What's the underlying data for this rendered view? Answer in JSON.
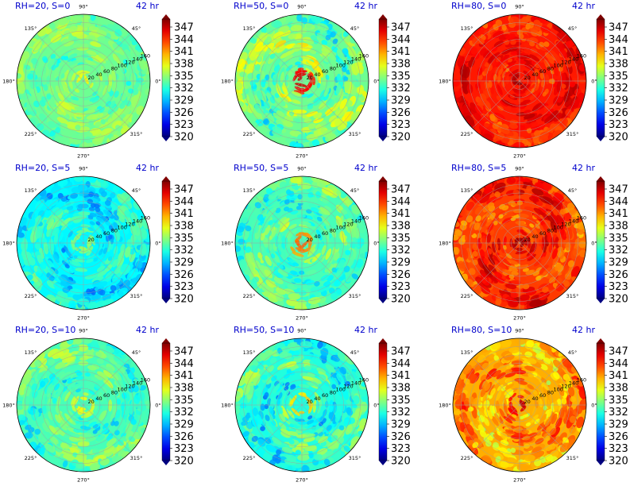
{
  "figure": {
    "colormap": "jet",
    "time_label": "42 hr",
    "title_color": "#0000cc",
    "colorbar_ticks": [
      "347",
      "344",
      "341",
      "338",
      "335",
      "332",
      "329",
      "326",
      "323",
      "320"
    ],
    "angle_labels": {
      "a0": "0°",
      "a45": "45°",
      "a90": "90°",
      "a135": "135°",
      "a180": "180°",
      "a225": "225°",
      "a270": "270°",
      "a315": "315°"
    },
    "radial_labels": [
      "20",
      "40",
      "60",
      "80",
      "100",
      "120",
      "140",
      "160"
    ]
  },
  "chart_data": [
    {
      "type": "heatmap",
      "projection": "polar",
      "title": "RH=20, S=0",
      "time": "42 hr",
      "vmin": 320,
      "vmax": 347,
      "dominant_range": [
        330,
        336
      ],
      "core_value": 338,
      "r_max": 160
    },
    {
      "type": "heatmap",
      "projection": "polar",
      "title": "RH=50, S=0",
      "time": "42 hr",
      "vmin": 320,
      "vmax": 347,
      "dominant_range": [
        328,
        338
      ],
      "core_value": 346,
      "r_max": 160
    },
    {
      "type": "heatmap",
      "projection": "polar",
      "title": "RH=80, S=0",
      "time": "42 hr",
      "vmin": 320,
      "vmax": 347,
      "dominant_range": [
        340,
        346
      ],
      "core_value": 347,
      "r_max": 160
    },
    {
      "type": "heatmap",
      "projection": "polar",
      "title": "RH=20, S=5",
      "time": "42 hr",
      "vmin": 320,
      "vmax": 347,
      "dominant_range": [
        326,
        334
      ],
      "core_value": 336,
      "r_max": 160
    },
    {
      "type": "heatmap",
      "projection": "polar",
      "title": "RH=50, S=5",
      "time": "42 hr",
      "vmin": 320,
      "vmax": 347,
      "dominant_range": [
        328,
        336
      ],
      "core_value": 342,
      "r_max": 160
    },
    {
      "type": "heatmap",
      "projection": "polar",
      "title": "RH=80, S=5",
      "time": "42 hr",
      "vmin": 320,
      "vmax": 347,
      "dominant_range": [
        338,
        346
      ],
      "core_value": 347,
      "r_max": 160
    },
    {
      "type": "heatmap",
      "projection": "polar",
      "title": "RH=20, S=10",
      "time": "42 hr",
      "vmin": 320,
      "vmax": 347,
      "dominant_range": [
        328,
        336
      ],
      "core_value": 338,
      "r_max": 160
    },
    {
      "type": "heatmap",
      "projection": "polar",
      "title": "RH=50, S=10",
      "time": "42 hr",
      "vmin": 320,
      "vmax": 347,
      "dominant_range": [
        326,
        336
      ],
      "core_value": 340,
      "r_max": 160
    },
    {
      "type": "heatmap",
      "projection": "polar",
      "title": "RH=80, S=10",
      "time": "42 hr",
      "vmin": 320,
      "vmax": 347,
      "dominant_range": [
        334,
        344
      ],
      "core_value": 346,
      "r_max": 160
    }
  ]
}
